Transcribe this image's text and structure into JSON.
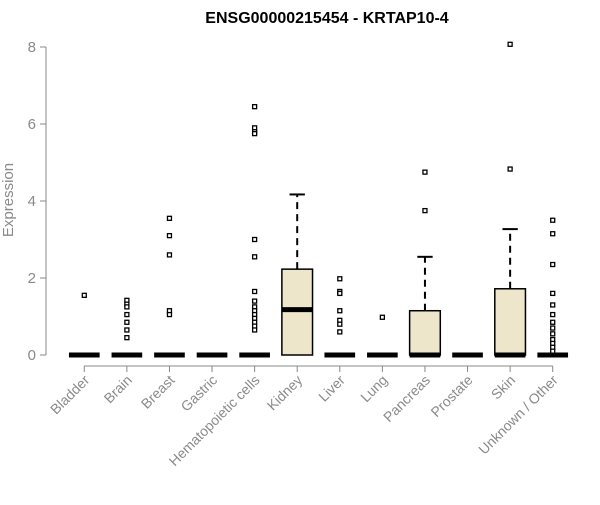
{
  "chart_data": {
    "type": "box",
    "title": "ENSG00000215454 - KRTAP10-4",
    "xlabel": "",
    "ylabel": "Expression",
    "ylim": [
      0,
      8.2
    ],
    "yticks": [
      0,
      2,
      4,
      6,
      8
    ],
    "grid": false,
    "legend": "none",
    "colors": {
      "box_fill": "#ede6cb",
      "axis": "#888888",
      "ink": "#000000"
    },
    "categories": [
      "Bladder",
      "Brain",
      "Breast",
      "Gastric",
      "Hematopoietic cells",
      "Kidney",
      "Liver",
      "Lung",
      "Pancreas",
      "Prostate",
      "Skin",
      "Unknown / Other"
    ],
    "boxes": [
      {
        "q1": 0,
        "median": 0,
        "q3": 0,
        "whisker_low": 0,
        "whisker_high": 0,
        "outliers": [
          1.55
        ]
      },
      {
        "q1": 0,
        "median": 0,
        "q3": 0,
        "whisker_low": 0,
        "whisker_high": 0,
        "outliers": [
          1.42,
          1.32,
          1.25,
          1.05,
          0.85,
          0.65,
          0.45
        ]
      },
      {
        "q1": 0,
        "median": 0,
        "q3": 0,
        "whisker_low": 0,
        "whisker_high": 0,
        "outliers": [
          3.55,
          3.1,
          2.6,
          1.15,
          1.05
        ]
      },
      {
        "q1": 0,
        "median": 0,
        "q3": 0,
        "whisker_low": 0,
        "whisker_high": 0,
        "outliers": []
      },
      {
        "q1": 0,
        "median": 0,
        "q3": 0,
        "whisker_low": 0,
        "whisker_high": 0,
        "outliers": [
          6.45,
          5.9,
          5.8,
          5.75,
          3.0,
          2.55,
          1.65,
          1.4,
          1.25,
          1.15,
          1.05,
          0.95,
          0.85,
          0.75,
          0.65
        ]
      },
      {
        "q1": 0,
        "median": 1.18,
        "q3": 2.23,
        "whisker_low": 0,
        "whisker_high": 4.17,
        "outliers": []
      },
      {
        "q1": 0,
        "median": 0,
        "q3": 0,
        "whisker_low": 0,
        "whisker_high": 0,
        "outliers": [
          1.98,
          1.65,
          1.6,
          1.15,
          0.9,
          0.8,
          0.6
        ]
      },
      {
        "q1": 0,
        "median": 0,
        "q3": 0,
        "whisker_low": 0,
        "whisker_high": 0,
        "outliers": [
          0.98
        ]
      },
      {
        "q1": 0,
        "median": 0,
        "q3": 1.15,
        "whisker_low": 0,
        "whisker_high": 2.55,
        "outliers": [
          4.75,
          3.75
        ]
      },
      {
        "q1": 0,
        "median": 0,
        "q3": 0,
        "whisker_low": 0,
        "whisker_high": 0,
        "outliers": []
      },
      {
        "q1": 0,
        "median": 0,
        "q3": 1.72,
        "whisker_low": 0,
        "whisker_high": 3.27,
        "outliers": [
          8.07,
          4.83
        ]
      },
      {
        "q1": 0,
        "median": 0,
        "q3": 0,
        "whisker_low": 0,
        "whisker_high": 0,
        "outliers": [
          3.5,
          3.15,
          2.35,
          1.6,
          1.3,
          1.05,
          0.85,
          0.7,
          0.55,
          0.4,
          0.3,
          0.2,
          0.1
        ]
      }
    ]
  }
}
